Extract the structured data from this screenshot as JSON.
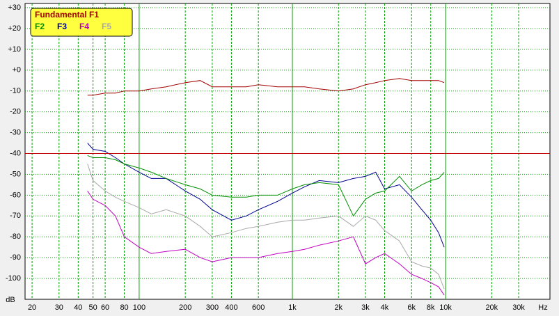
{
  "chart_data": {
    "type": "line",
    "x_label": "Hz",
    "y_label": "dB",
    "log_x": true,
    "grid": true,
    "xlim": [
      18,
      48000
    ],
    "ylim": [
      -110,
      32
    ],
    "xticks": [
      20,
      30,
      40,
      50,
      60,
      80,
      100,
      200,
      300,
      400,
      600,
      {
        "value": 1000,
        "label": "1k"
      },
      {
        "value": 2000,
        "label": "2k"
      },
      {
        "value": 3000,
        "label": "3k"
      },
      {
        "value": 4000,
        "label": "4k"
      },
      {
        "value": 6000,
        "label": "6k"
      },
      {
        "value": 8000,
        "label": "8k"
      },
      {
        "value": 10000,
        "label": "10k"
      },
      {
        "value": 20000,
        "label": "20k"
      },
      {
        "value": 30000,
        "label": "30k"
      }
    ],
    "yticks": [
      {
        "value": 30,
        "label": "+30"
      },
      {
        "value": 20,
        "label": "+20"
      },
      {
        "value": 10,
        "label": "+10"
      },
      {
        "value": 0,
        "label": "+0"
      },
      -10,
      -20,
      -30,
      -40,
      -50,
      -60,
      -70,
      -80,
      -90,
      -100
    ],
    "hline": -40,
    "hline_color": "#c00000",
    "legend_position": "upper left",
    "x": [
      46,
      50,
      60,
      70,
      80,
      100,
      120,
      150,
      200,
      250,
      300,
      400,
      500,
      600,
      800,
      1000,
      1200,
      1500,
      2000,
      2500,
      3000,
      3500,
      4000,
      5000,
      6000,
      7000,
      8000,
      9000,
      9800
    ],
    "series": [
      {
        "name": "Fundamental F1",
        "color": "#a00000",
        "values": [
          -12,
          -12,
          -11,
          -11,
          -10,
          -10,
          -9,
          -8,
          -6,
          -5,
          -8,
          -8,
          -8,
          -7,
          -8,
          -8,
          -8,
          -9,
          -10,
          -9,
          -7,
          -6,
          -5,
          -4,
          -5,
          -5,
          -5,
          -5,
          -6
        ]
      },
      {
        "name": "F2",
        "color": "#009000",
        "values": [
          -41,
          -42,
          -42,
          -43,
          -45,
          -47,
          -49,
          -52,
          -55,
          -57,
          -60,
          -61,
          -61,
          -60,
          -60,
          -57,
          -55,
          -54,
          -55,
          -70,
          -62,
          -59,
          -58,
          -51,
          -58,
          -55,
          -53,
          -52,
          -49
        ]
      },
      {
        "name": "F3",
        "color": "#000090",
        "values": [
          -35,
          -38,
          -39,
          -42,
          -45,
          -49,
          -52,
          -52,
          -58,
          -62,
          -67,
          -72,
          -70,
          -67,
          -63,
          -59,
          -56,
          -53,
          -54,
          -52,
          -51,
          -49,
          -57,
          -55,
          -61,
          -67,
          -72,
          -78,
          -85
        ]
      },
      {
        "name": "F4",
        "color": "#c000c0",
        "values": [
          -58,
          -62,
          -65,
          -70,
          -80,
          -85,
          -88,
          -87,
          -86,
          -90,
          -92,
          -90,
          -90,
          -90,
          -88,
          -87,
          -86,
          -84,
          -82,
          -80,
          -93,
          -90,
          -88,
          -93,
          -98,
          -100,
          -102,
          -104,
          -108
        ]
      },
      {
        "name": "F5",
        "color": "#a8a8a8",
        "values": [
          -45,
          -53,
          -58,
          -61,
          -63,
          -66,
          -69,
          -67,
          -70,
          -75,
          -80,
          -78,
          -76,
          -75,
          -73,
          -72,
          -72,
          -71,
          -70,
          -75,
          -70,
          -72,
          -77,
          -82,
          -92,
          -94,
          -95,
          -98,
          -105
        ]
      }
    ]
  }
}
